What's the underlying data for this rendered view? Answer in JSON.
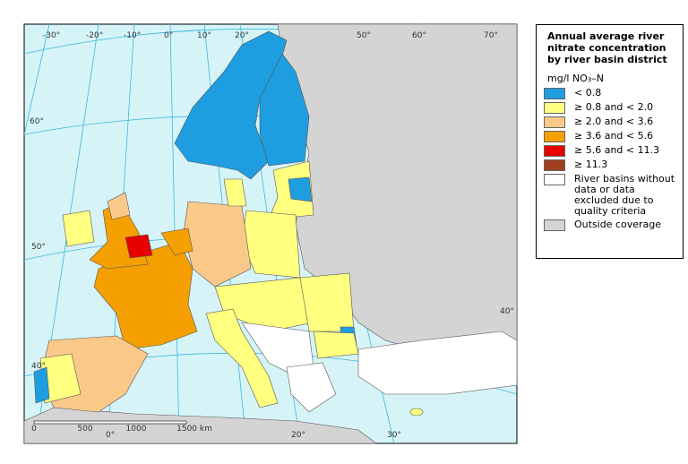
{
  "legend": {
    "title": "Annual average river nitrate concentration by river basin district",
    "unit": "mg/l NO₃–N",
    "items": [
      {
        "label": "< 0.8",
        "color": "#1e9ee0"
      },
      {
        "label": "≥ 0.8 and < 2.0",
        "color": "#ffff80"
      },
      {
        "label": "≥ 2.0 and < 3.6",
        "color": "#fac98a"
      },
      {
        "label": "≥ 3.6 and < 5.6",
        "color": "#f5a000"
      },
      {
        "label": "≥ 5.6 and < 11.3",
        "color": "#e60000"
      },
      {
        "label": "≥ 11.3",
        "color": "#a0401e"
      },
      {
        "label": "River basins without data or data excluded due to quality criteria",
        "color": "#ffffff"
      },
      {
        "label": "Outside coverage",
        "color": "#d4d4d4"
      }
    ]
  },
  "graticule": {
    "top": [
      "-30°",
      "-20°",
      "-10°",
      "0°",
      "10°",
      "20°",
      "50°",
      "60°",
      "70°"
    ],
    "left": [
      "60°",
      "50°",
      "40°"
    ],
    "right": [
      "40°"
    ],
    "bottom": [
      "0°",
      "20°",
      "30°"
    ]
  },
  "scale_bar": {
    "labels": [
      "0",
      "500",
      "1000",
      "1500 km"
    ]
  }
}
